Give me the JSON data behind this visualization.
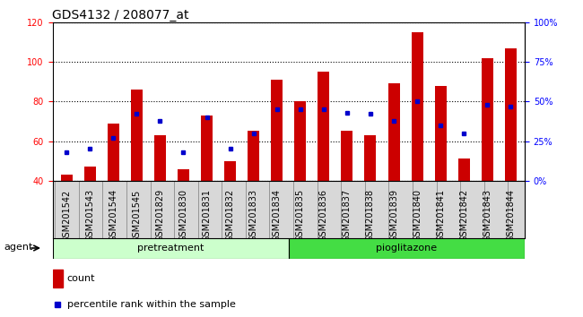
{
  "title": "GDS4132 / 208077_at",
  "categories": [
    "GSM201542",
    "GSM201543",
    "GSM201544",
    "GSM201545",
    "GSM201829",
    "GSM201830",
    "GSM201831",
    "GSM201832",
    "GSM201833",
    "GSM201834",
    "GSM201835",
    "GSM201836",
    "GSM201837",
    "GSM201838",
    "GSM201839",
    "GSM201840",
    "GSM201841",
    "GSM201842",
    "GSM201843",
    "GSM201844"
  ],
  "counts": [
    43,
    47,
    69,
    86,
    63,
    46,
    73,
    50,
    65,
    91,
    80,
    95,
    65,
    63,
    89,
    115,
    88,
    51,
    102,
    107
  ],
  "percentiles": [
    18,
    20,
    27,
    42,
    38,
    18,
    40,
    20,
    30,
    45,
    45,
    45,
    43,
    42,
    38,
    50,
    35,
    30,
    48,
    47
  ],
  "ylim_left": [
    40,
    120
  ],
  "ylim_right": [
    0,
    100
  ],
  "yticks_left": [
    40,
    60,
    80,
    100,
    120
  ],
  "yticks_right": [
    0,
    25,
    50,
    75,
    100
  ],
  "yticklabels_right": [
    "0%",
    "25%",
    "50%",
    "75%",
    "100%"
  ],
  "bar_color": "#cc0000",
  "dot_color": "#0000cc",
  "pretreatment_count": 10,
  "pioglitazone_count": 10,
  "group_labels": [
    "pretreatment",
    "pioglitazone"
  ],
  "pretreatment_color": "#ccffcc",
  "pioglitazone_color": "#44dd44",
  "agent_label": "agent",
  "legend_count": "count",
  "legend_percentile": "percentile rank within the sample",
  "plot_bg": "#ffffff",
  "bar_width": 0.5,
  "title_fontsize": 10,
  "tick_fontsize": 7,
  "label_fontsize": 8
}
